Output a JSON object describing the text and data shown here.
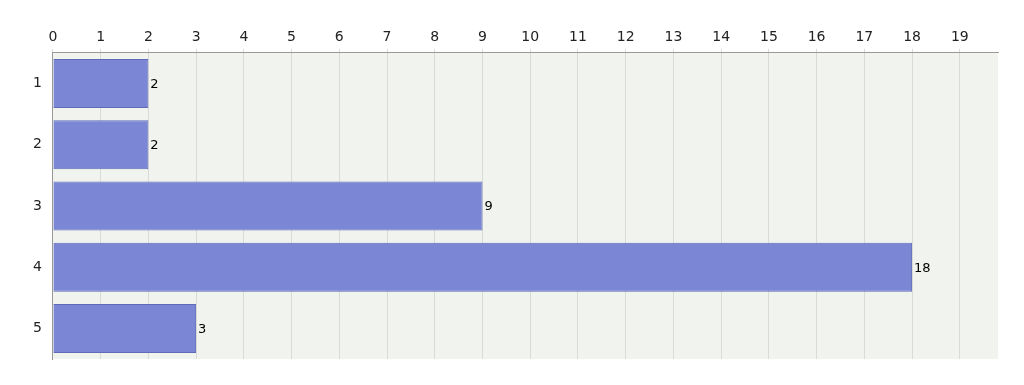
{
  "chart_data": {
    "type": "bar",
    "orientation": "horizontal",
    "categories": [
      "1",
      "2",
      "3",
      "4",
      "5"
    ],
    "values": [
      2,
      2,
      9,
      18,
      3
    ],
    "color": "#7b87d4",
    "xlim": [
      0,
      19.8
    ],
    "xticks": [
      0,
      1,
      2,
      3,
      4,
      5,
      6,
      7,
      8,
      9,
      10,
      11,
      12,
      13,
      14,
      15,
      16,
      17,
      18,
      19
    ],
    "grid": "x",
    "data_labels": true,
    "legend": false
  }
}
